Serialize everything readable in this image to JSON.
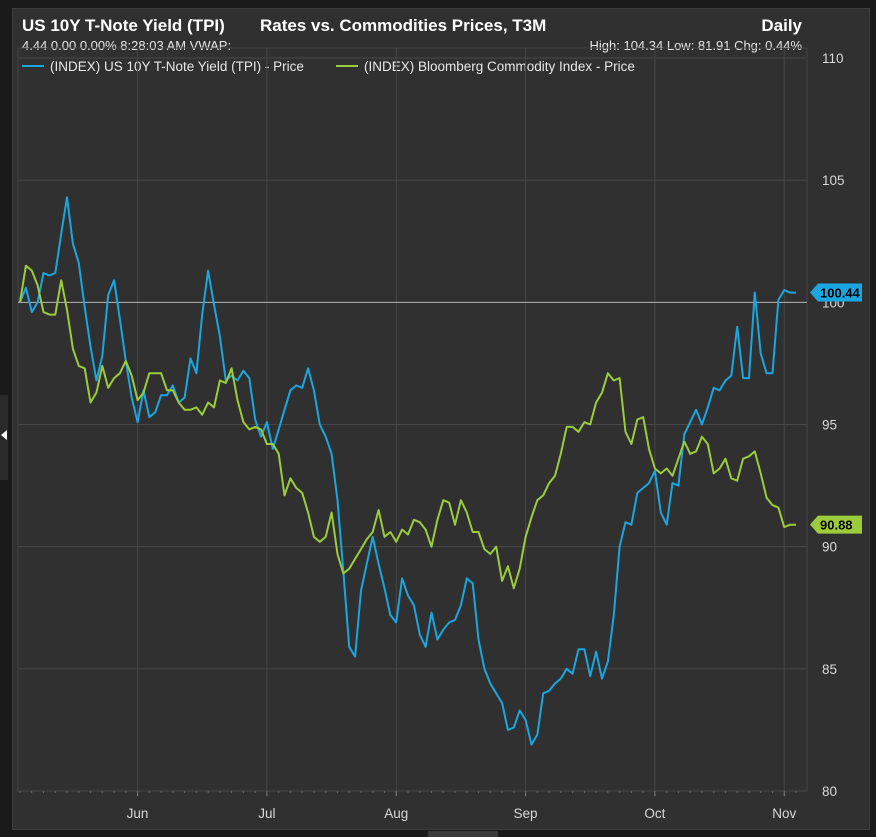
{
  "header": {
    "title": "US 10Y T-Note Yield (TPI)",
    "subtitle": "Rates vs. Commodities Prices, T3M",
    "frequency": "Daily",
    "quote": "4.44 0.00 0.00% 8:28:03 AM VWAP:",
    "stats": "High: 104.34 Low: 81.91 Chg: 0.44%"
  },
  "chart_data": {
    "type": "line",
    "ylim": [
      80,
      110
    ],
    "yticks": [
      80,
      85,
      90,
      95,
      100,
      105,
      110
    ],
    "xlabels": [
      "Jun",
      "Jul",
      "Aug",
      "Sep",
      "Oct",
      "Nov"
    ],
    "xlabel_index": [
      20,
      42,
      64,
      86,
      108,
      130
    ],
    "n_points": 133,
    "reference_line": 100,
    "series": [
      {
        "name": "(INDEX) US 10Y T-Note Yield (TPI) - Price",
        "color": "#1aa6e0",
        "last_label": "100.44",
        "values": [
          100.0,
          100.6,
          99.6,
          100.0,
          101.2,
          101.1,
          101.2,
          102.8,
          104.3,
          102.4,
          101.6,
          99.8,
          98.2,
          96.8,
          97.8,
          100.3,
          100.9,
          99.3,
          97.6,
          96.1,
          95.1,
          96.4,
          95.3,
          95.5,
          96.2,
          96.2,
          96.6,
          95.9,
          96.1,
          97.7,
          97.1,
          99.5,
          101.3,
          99.9,
          98.6,
          96.8,
          97.0,
          96.8,
          97.2,
          96.9,
          95.2,
          94.5,
          95.1,
          94.0,
          94.8,
          95.6,
          96.4,
          96.6,
          96.5,
          97.3,
          96.4,
          95.0,
          94.5,
          93.8,
          91.9,
          89.0,
          85.9,
          85.5,
          88.2,
          89.3,
          90.4,
          89.3,
          88.3,
          87.2,
          86.9,
          88.7,
          88.0,
          87.6,
          86.4,
          85.9,
          87.3,
          86.2,
          86.6,
          86.9,
          87.0,
          87.6,
          88.7,
          88.5,
          86.2,
          85.0,
          84.4,
          84.0,
          83.6,
          82.5,
          82.6,
          83.3,
          82.9,
          81.9,
          82.3,
          84.0,
          84.1,
          84.4,
          84.6,
          85.0,
          84.8,
          85.8,
          85.8,
          84.7,
          85.7,
          84.6,
          85.3,
          87.2,
          90.0,
          91.0,
          90.9,
          92.2,
          92.4,
          92.6,
          93.1,
          91.4,
          90.9,
          92.6,
          92.5,
          94.6,
          95.1,
          95.6,
          95.0,
          95.7,
          96.5,
          96.4,
          96.8,
          97.0,
          99.0,
          96.9,
          96.9,
          100.4,
          97.9,
          97.1,
          97.1,
          100.1,
          100.5,
          100.4,
          100.4
        ]
      },
      {
        "name": "(INDEX) Bloomberg Commodity Index - Price",
        "color": "#9ccc3c",
        "last_label": "90.88",
        "values": [
          100.0,
          101.5,
          101.3,
          100.7,
          99.6,
          99.5,
          99.5,
          100.9,
          99.7,
          98.1,
          97.4,
          97.3,
          95.9,
          96.3,
          97.4,
          96.5,
          96.9,
          97.1,
          97.6,
          97.0,
          96.0,
          96.3,
          97.1,
          97.1,
          97.1,
          96.4,
          96.4,
          95.9,
          95.6,
          95.6,
          95.7,
          95.4,
          95.9,
          95.7,
          96.8,
          96.7,
          97.3,
          96.0,
          95.1,
          94.8,
          94.9,
          94.8,
          94.2,
          94.2,
          93.8,
          92.1,
          92.8,
          92.4,
          92.2,
          91.4,
          90.4,
          90.2,
          90.4,
          91.4,
          89.7,
          88.9,
          89.1,
          89.5,
          89.9,
          90.3,
          90.6,
          91.5,
          90.4,
          90.6,
          90.2,
          90.7,
          90.5,
          91.1,
          91.0,
          90.7,
          90.0,
          91.1,
          91.9,
          91.8,
          90.9,
          91.9,
          91.4,
          90.6,
          90.6,
          89.9,
          89.7,
          90.0,
          88.6,
          89.2,
          88.3,
          89.1,
          90.4,
          91.2,
          91.9,
          92.1,
          92.6,
          92.9,
          93.8,
          94.9,
          94.9,
          94.7,
          95.1,
          95.0,
          95.9,
          96.3,
          97.1,
          96.8,
          96.9,
          94.7,
          94.2,
          95.2,
          95.3,
          94.0,
          93.2,
          93.0,
          93.2,
          92.9,
          93.6,
          94.3,
          93.8,
          93.9,
          94.5,
          94.2,
          93.0,
          93.2,
          93.6,
          92.8,
          92.7,
          93.6,
          93.7,
          93.9,
          93.0,
          92.0,
          91.7,
          91.6,
          90.8,
          90.9,
          90.9
        ]
      }
    ]
  }
}
